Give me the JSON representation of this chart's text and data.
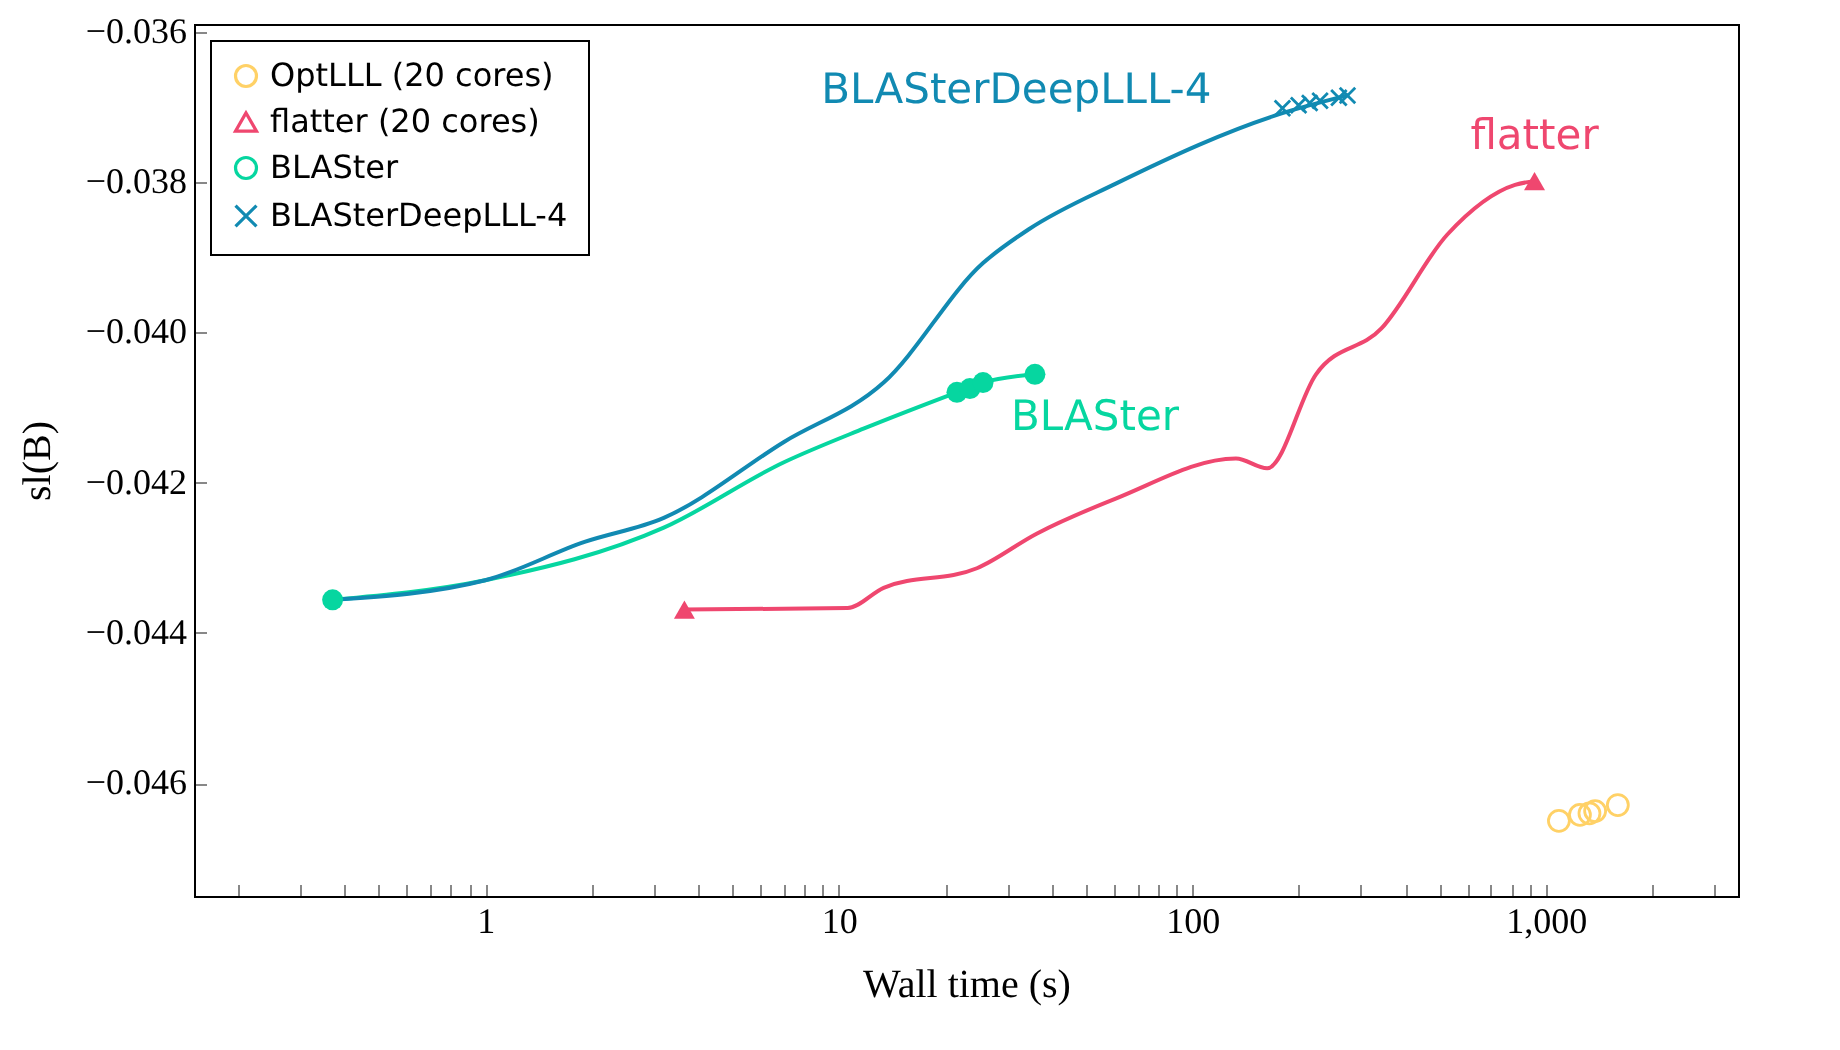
{
  "chart_data": {
    "type": "line",
    "xlabel": "Wall time (s)",
    "ylabel": "sl(B)",
    "log": "x",
    "legend": "top left",
    "xlim": [
      0.15,
      3500
    ],
    "ylim": [
      -0.0475,
      -0.0359
    ],
    "xticks": [
      {
        "value": 0.2,
        "label": null
      },
      {
        "value": 0.3,
        "label": null
      },
      {
        "value": 0.4,
        "label": null
      },
      {
        "value": 0.5,
        "label": null
      },
      {
        "value": 0.6,
        "label": null
      },
      {
        "value": 0.7,
        "label": null
      },
      {
        "value": 0.8,
        "label": null
      },
      {
        "value": 0.9,
        "label": null
      },
      1,
      {
        "value": 2,
        "label": null
      },
      {
        "value": 3,
        "label": null
      },
      {
        "value": 4,
        "label": null
      },
      {
        "value": 5,
        "label": null
      },
      {
        "value": 6,
        "label": null
      },
      {
        "value": 7,
        "label": null
      },
      {
        "value": 8,
        "label": null
      },
      {
        "value": 9,
        "label": null
      },
      10,
      {
        "value": 20,
        "label": null
      },
      {
        "value": 30,
        "label": null
      },
      {
        "value": 40,
        "label": null
      },
      {
        "value": 50,
        "label": null
      },
      {
        "value": 60,
        "label": null
      },
      {
        "value": 70,
        "label": null
      },
      {
        "value": 80,
        "label": null
      },
      {
        "value": 90,
        "label": null
      },
      100,
      {
        "value": 200,
        "label": null
      },
      {
        "value": 300,
        "label": null
      },
      {
        "value": 400,
        "label": null
      },
      {
        "value": 500,
        "label": null
      },
      {
        "value": 600,
        "label": null
      },
      {
        "value": 700,
        "label": null
      },
      {
        "value": 800,
        "label": null
      },
      {
        "value": 900,
        "label": null
      },
      {
        "value": 1000,
        "label": "1,000"
      },
      {
        "value": 2000,
        "label": null
      },
      {
        "value": 3000,
        "label": null
      }
    ],
    "yticks": [
      {
        "value": -0.036,
        "label": "−0.036"
      },
      {
        "value": -0.038,
        "label": "−0.038"
      },
      {
        "value": -0.04,
        "label": "−0.040"
      },
      {
        "value": -0.042,
        "label": "−0.042"
      },
      {
        "value": -0.044,
        "label": "−0.044"
      },
      {
        "value": -0.046,
        "label": "−0.046"
      }
    ],
    "series": [
      {
        "name": "OptLLL (20 cores)",
        "type": "scatter",
        "marker": "circle",
        "color": "#ffd166",
        "x": [
          1090,
          1250,
          1330,
          1380,
          1600
        ],
        "values": [
          -0.0465,
          -0.04642,
          -0.0464,
          -0.04637,
          -0.04629
        ]
      },
      {
        "name": "flatter (20 cores)",
        "marker": "none",
        "line_style": "solid",
        "color": "#ef476f",
        "x": [
          3.66,
          10.6,
          13.4,
          24.6,
          36.3,
          61,
          133,
          163,
          224,
          343,
          527,
          819,
          930
        ],
        "values": [
          -0.04369,
          -0.04367,
          -0.0434,
          -0.04314,
          -0.04268,
          -0.04221,
          -0.04168,
          -0.04181,
          -0.04056,
          -0.03995,
          -0.0387,
          -0.03804,
          -0.03799
        ]
      },
      {
        "name": "BLASter",
        "marker": "none",
        "line_style": "solid",
        "color": "#06d6a0",
        "x": [
          0.37,
          1,
          3.2,
          7,
          11.8,
          21.6,
          25.6,
          35.9
        ],
        "values": [
          -0.04356,
          -0.0433,
          -0.0426,
          -0.04173,
          -0.04128,
          -0.0408,
          -0.04067,
          -0.04056
        ]
      },
      {
        "name": "BLASterDeepLLL-4",
        "marker": "none",
        "line_style": "solid",
        "color": "#118ab2",
        "x": [
          0.37,
          1,
          1.91,
          3.2,
          7,
          13.4,
          25.6,
          34.5,
          61,
          179,
          275
        ],
        "values": [
          -0.04356,
          -0.0433,
          -0.04279,
          -0.04247,
          -0.04146,
          -0.04067,
          -0.03908,
          -0.03863,
          -0.03802,
          -0.03709,
          -0.03685
        ]
      },
      {
        "type": "scatter",
        "marker": "triangle",
        "color": "#ef476f",
        "x": [
          3.66,
          930
        ],
        "values": [
          -0.04369,
          -0.03799
        ]
      },
      {
        "type": "scatter",
        "marker": "circle",
        "color": "#06d6a0",
        "x": [
          0.37,
          21.6,
          23.5,
          25.6,
          35.9
        ],
        "values": [
          -0.04356,
          -0.0408,
          -0.04075,
          -0.04067,
          -0.04056
        ]
      },
      {
        "type": "scatter",
        "marker": "cross",
        "color": "#118ab2",
        "x": [
          180,
          200,
          215,
          230,
          260,
          275
        ],
        "values": [
          -0.03702,
          -0.03698,
          -0.03695,
          -0.03692,
          -0.03688,
          -0.03685
        ]
      }
    ],
    "annotations": [
      "flatter",
      "BLASter",
      "BLASterDeepLLL-4"
    ]
  }
}
